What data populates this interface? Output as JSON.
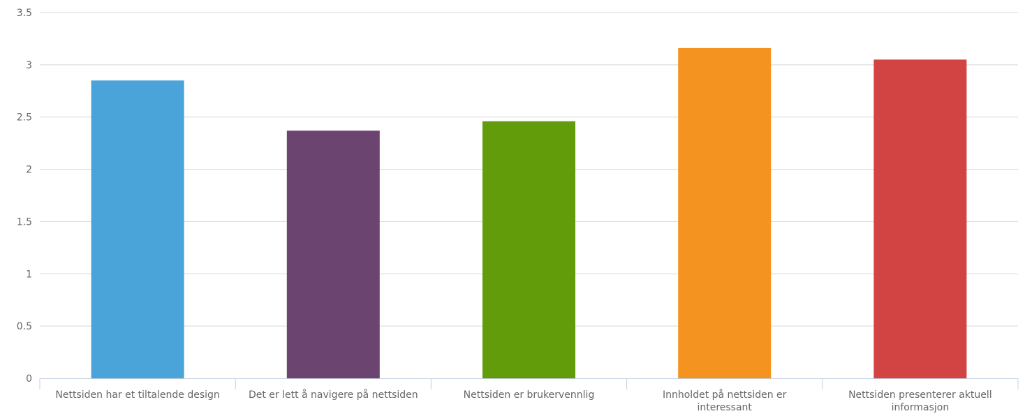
{
  "chart_data": {
    "type": "bar",
    "title": "",
    "xlabel": "",
    "ylabel": "",
    "categories": [
      [
        "Nettsiden har et tiltalende design"
      ],
      [
        "Det er lett å navigere på nettsiden"
      ],
      [
        "Nettsiden er brukervennlig"
      ],
      [
        "Innholdet på nettsiden er",
        "interessant"
      ],
      [
        "Nettsiden presenterer aktuell",
        "informasjon"
      ]
    ],
    "values": [
      2.85,
      2.37,
      2.46,
      3.16,
      3.05
    ],
    "colors": [
      "#4aa3d9",
      "#6b4570",
      "#639c0b",
      "#f59320",
      "#d24343"
    ],
    "ylim": [
      0,
      3.5
    ],
    "yticks": [
      "0",
      "0.5",
      "1",
      "1.5",
      "2",
      "2.5",
      "3",
      "3.5"
    ],
    "grid": true,
    "legend": "none"
  }
}
